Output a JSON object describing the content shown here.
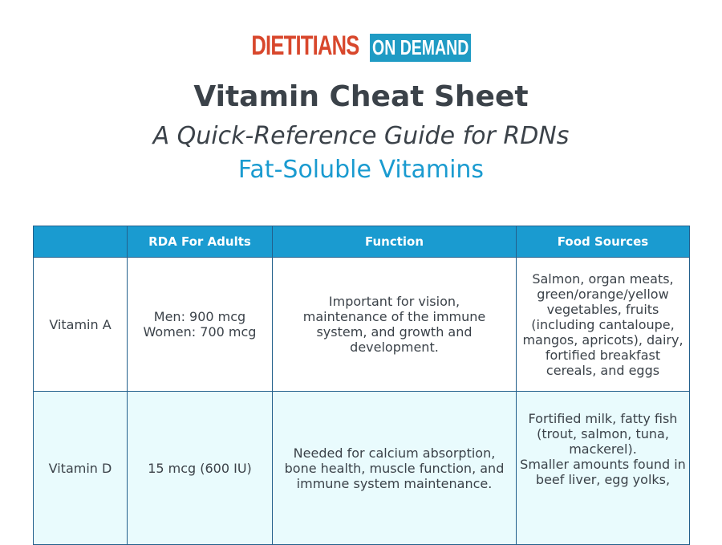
{
  "logo": {
    "part1": "DIETITIANS",
    "part2": "ON DEMAND"
  },
  "title": "Vitamin Cheat Sheet",
  "subtitle": "A Quick-Reference Guide for RDNs",
  "section": "Fat-Soluble Vitamins",
  "colors": {
    "accent": "#1a9bd0",
    "logo_red": "#d8472c",
    "border": "#23608c",
    "row_alt": "#e9fbfd"
  },
  "table": {
    "headers": [
      "",
      "RDA For Adults",
      "Function",
      "Food Sources"
    ],
    "rows": [
      {
        "name": "Vitamin A",
        "rda": "Men: 900 mcg\nWomen: 700 mcg",
        "function": "Important for vision, maintenance of the immune system, and growth and development.",
        "sources": "Salmon, organ meats, green/orange/yellow vegetables, fruits (including cantaloupe, mangos, apricots), dairy, fortified breakfast cereals, and eggs"
      },
      {
        "name": "Vitamin D",
        "rda": "15 mcg (600 IU)",
        "function": "Needed for calcium absorption, bone health, muscle function, and immune system maintenance.",
        "sources": "Fortified milk, fatty fish (trout, salmon, tuna, mackerel).\nSmaller amounts found in beef liver, egg yolks,"
      }
    ]
  }
}
